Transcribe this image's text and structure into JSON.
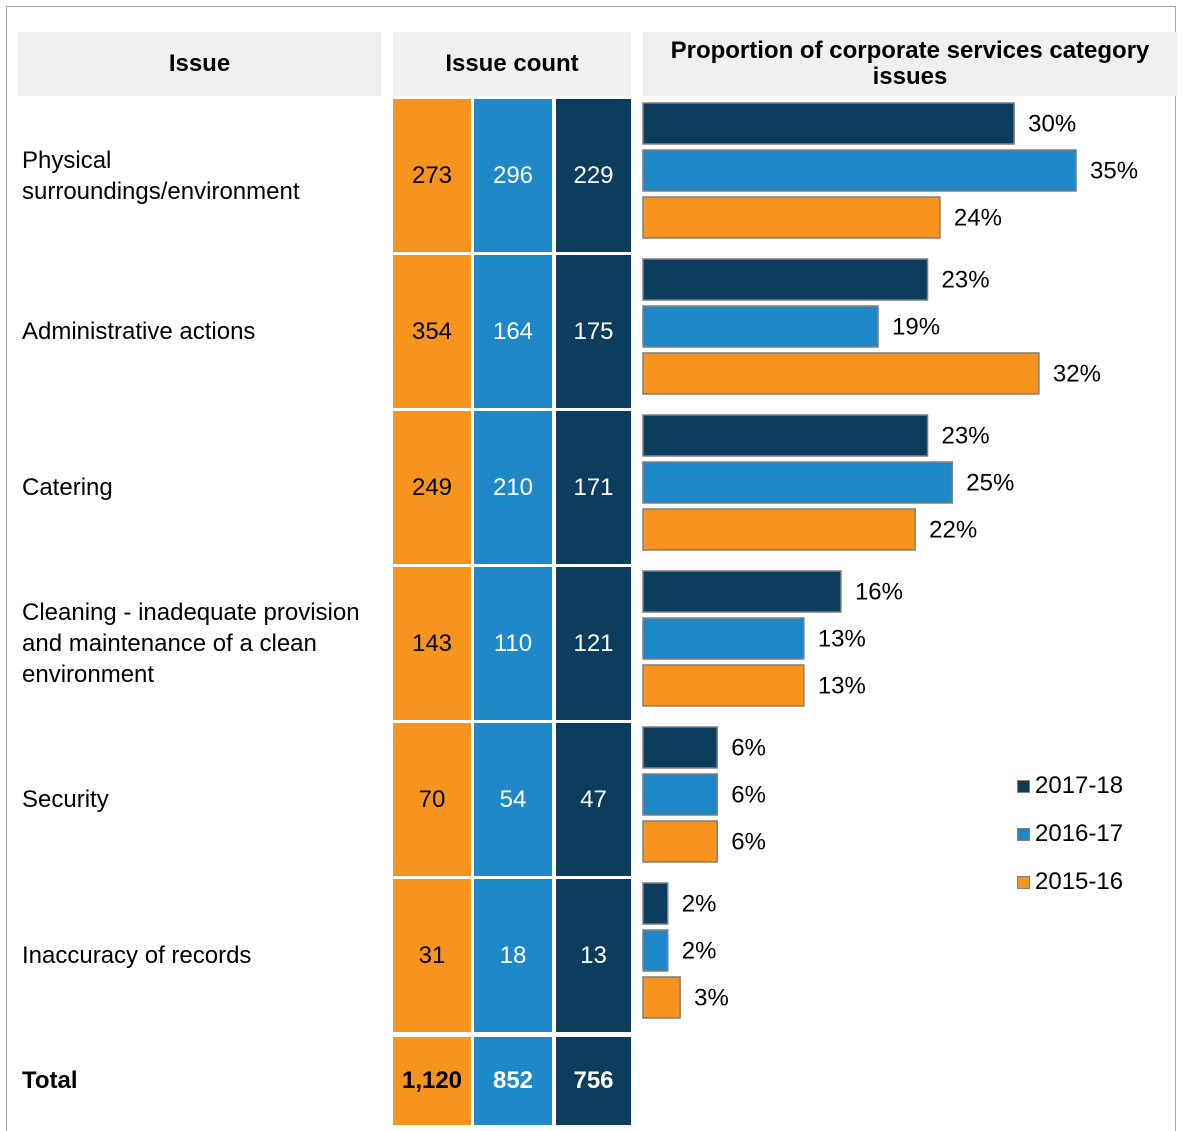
{
  "header": {
    "issue": "Issue",
    "count": "Issue count",
    "proportion": "Proportion of corporate services category issues"
  },
  "colors": {
    "2015-16": "#f7941d",
    "2016-17": "#1f88c8",
    "2017-18": "#0c3d5c"
  },
  "legend": [
    {
      "label": "2017-18",
      "color": "#0c3d5c"
    },
    {
      "label": "2016-17",
      "color": "#1f88c8"
    },
    {
      "label": "2015-16",
      "color": "#f7941d"
    }
  ],
  "rows": [
    {
      "issue": "Physical surroundings/environment",
      "c1516": "273",
      "c1617": "296",
      "c1718": "229",
      "p1718": "30%",
      "p1617": "35%",
      "p1516": "24%"
    },
    {
      "issue": "Administrative actions",
      "c1516": "354",
      "c1617": "164",
      "c1718": "175",
      "p1718": "23%",
      "p1617": "19%",
      "p1516": "32%"
    },
    {
      "issue": "Catering",
      "c1516": "249",
      "c1617": "210",
      "c1718": "171",
      "p1718": "23%",
      "p1617": "25%",
      "p1516": "22%"
    },
    {
      "issue": "Cleaning - inadequate provision and maintenance of a clean environment",
      "c1516": "143",
      "c1617": "110",
      "c1718": "121",
      "p1718": "16%",
      "p1617": "13%",
      "p1516": "13%"
    },
    {
      "issue": "Security",
      "c1516": "70",
      "c1617": "54",
      "c1718": "47",
      "p1718": "6%",
      "p1617": "6%",
      "p1516": "6%"
    },
    {
      "issue": "Inaccuracy of records",
      "c1516": "31",
      "c1617": "18",
      "c1718": "13",
      "p1718": "2%",
      "p1617": "2%",
      "p1516": "3%"
    }
  ],
  "total": {
    "label": "Total",
    "c1516": "1,120",
    "c1617": "852",
    "c1718": "756"
  },
  "chart_data": {
    "type": "bar",
    "orientation": "horizontal",
    "categories": [
      "Physical surroundings/environment",
      "Administrative actions",
      "Catering",
      "Cleaning - inadequate provision and maintenance of a clean environment",
      "Security",
      "Inaccuracy of records"
    ],
    "series": [
      {
        "name": "2017-18",
        "values": [
          30,
          23,
          23,
          16,
          6,
          2
        ]
      },
      {
        "name": "2016-17",
        "values": [
          35,
          19,
          25,
          13,
          6,
          2
        ]
      },
      {
        "name": "2015-16",
        "values": [
          24,
          32,
          22,
          13,
          6,
          3
        ]
      }
    ],
    "title": "Proportion of corporate services category issues",
    "unit": "%",
    "legend_position": "right",
    "grid": false
  }
}
